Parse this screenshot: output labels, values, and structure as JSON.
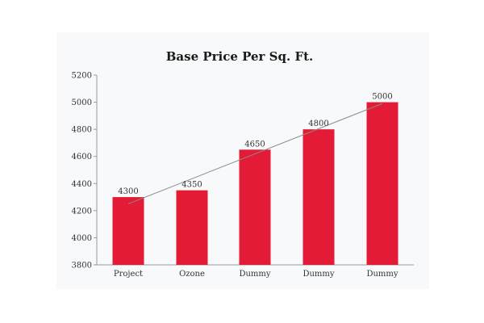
{
  "chart_data": {
    "type": "bar",
    "title": "Base Price Per Sq. Ft.",
    "xlabel": "",
    "ylabel": "",
    "categories": [
      "Project",
      "Ozone",
      "Dummy",
      "Dummy",
      "Dummy"
    ],
    "values": [
      4300,
      4350,
      4650,
      4800,
      5000
    ],
    "data_labels": [
      "4300",
      "4350",
      "4650",
      "4800",
      "5000"
    ],
    "ylim": [
      3800,
      5200
    ],
    "yticks": [
      3800,
      4000,
      4200,
      4400,
      4600,
      4800,
      5000,
      5200
    ],
    "ytick_labels": [
      "3800",
      "4000",
      "4200",
      "4400",
      "4600",
      "4800",
      "5000",
      "5200"
    ],
    "trendline": "linear",
    "grid": false,
    "legend": "none",
    "colors": {
      "bar": "#e31b36",
      "trendline": "#8a8a8a",
      "axis": "#999999",
      "background": "#f7f9fa"
    }
  }
}
